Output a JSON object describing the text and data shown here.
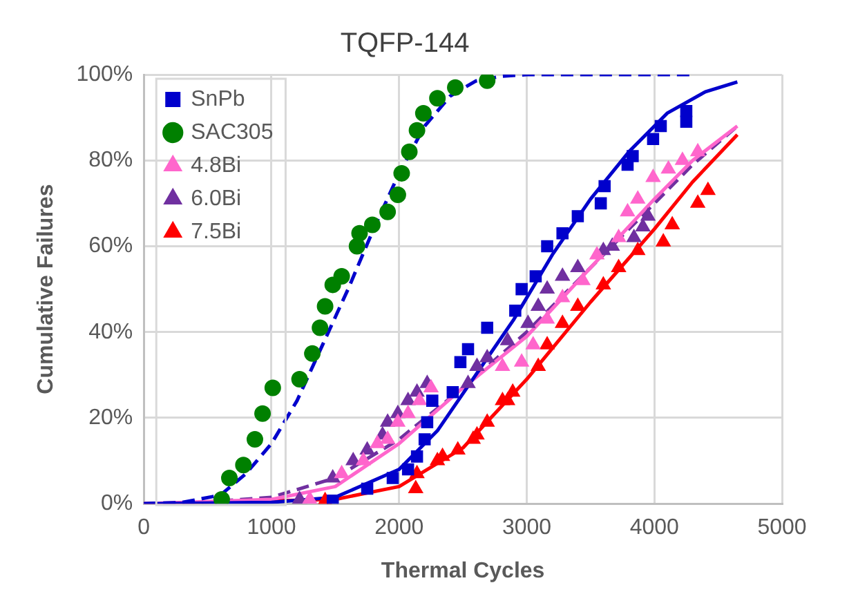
{
  "chart_data": {
    "type": "scatter",
    "title": "TQFP-144",
    "xlabel": "Thermal Cycles",
    "ylabel": "Cumulative Failures",
    "xlim": [
      0,
      5000
    ],
    "xticks": [
      0,
      1000,
      2000,
      3000,
      4000,
      5000
    ],
    "ylim": [
      0,
      100
    ],
    "yticks": [
      {
        "value": 0,
        "label": "0%"
      },
      {
        "value": 20,
        "label": "20%"
      },
      {
        "value": 40,
        "label": "40%"
      },
      {
        "value": 60,
        "label": "60%"
      },
      {
        "value": 80,
        "label": "80%"
      },
      {
        "value": 100,
        "label": "100%"
      }
    ],
    "grid": true,
    "legend": "top left",
    "series": [
      {
        "name": "SnPb",
        "type": "scatter",
        "marker": "square",
        "color": "#0000cc",
        "x": [
          1480,
          1750,
          1950,
          2070,
          2140,
          2200,
          2220,
          2260,
          2420,
          2480,
          2540,
          2690,
          2910,
          2960,
          3070,
          3160,
          3280,
          3400,
          3580,
          3610,
          3790,
          3830,
          3990,
          4050,
          4250,
          4250
        ],
        "values": [
          0.7,
          3.5,
          6,
          8,
          11,
          15,
          19,
          24,
          26,
          33,
          36,
          41,
          45,
          50,
          53,
          60,
          63,
          67,
          70,
          74,
          79,
          81,
          85,
          88,
          91.5,
          89
        ]
      },
      {
        "name": "SAC305",
        "type": "scatter",
        "marker": "circle",
        "color": "#008000",
        "x": [
          610,
          670,
          780,
          870,
          930,
          1010,
          1220,
          1320,
          1380,
          1420,
          1480,
          1550,
          1670,
          1690,
          1790,
          1910,
          1990,
          2020,
          2080,
          2140,
          2190,
          2300,
          2440,
          2690
        ],
        "values": [
          1,
          6,
          9,
          15,
          21,
          27,
          29,
          35,
          41,
          46,
          51,
          53,
          60,
          63,
          65,
          68,
          72,
          77,
          82,
          87,
          91,
          94.5,
          97,
          98.6
        ]
      },
      {
        "name": "4.8Bi",
        "type": "scatter",
        "marker": "triangle",
        "color": "#ff66cc",
        "x": [
          1300,
          1550,
          1720,
          1830,
          1910,
          1990,
          2070,
          2160,
          2250,
          2810,
          2960,
          3050,
          3160,
          3280,
          3440,
          3550,
          3720,
          3790,
          3870,
          3990,
          4110,
          4220,
          4340
        ],
        "values": [
          1,
          7,
          10,
          14,
          15,
          19,
          21,
          24,
          27,
          32,
          33,
          37,
          43,
          48,
          52,
          58,
          62,
          68,
          71,
          76,
          78,
          80,
          82
        ]
      },
      {
        "name": "6.0Bi",
        "type": "scatter",
        "marker": "triangle",
        "color": "#7030a0",
        "x": [
          1220,
          1480,
          1640,
          1750,
          1870,
          1910,
          1990,
          2070,
          2140,
          2220,
          2540,
          2610,
          2690,
          2850,
          3010,
          3090,
          3160,
          3280,
          3400,
          3600,
          3670,
          3840,
          3910,
          3950
        ],
        "values": [
          1,
          6,
          10,
          12.5,
          16,
          19,
          21,
          24,
          26,
          28,
          28,
          32,
          34,
          38,
          42,
          46,
          50,
          53,
          55,
          59,
          60,
          62,
          64.5,
          67
        ]
      },
      {
        "name": "7.5Bi",
        "type": "scatter",
        "marker": "triangle",
        "color": "#ff0000",
        "x": [
          1420,
          2130,
          2140,
          2300,
          2340,
          2460,
          2580,
          2610,
          2690,
          2810,
          2850,
          2890,
          3090,
          3160,
          3280,
          3400,
          3600,
          3720,
          3870,
          4070,
          4140,
          4340,
          4420
        ],
        "values": [
          0.7,
          3.5,
          7,
          10,
          11,
          12.5,
          15,
          16,
          19,
          24,
          24,
          26,
          32,
          37,
          42,
          46,
          51,
          55,
          59,
          61,
          65,
          70,
          73
        ]
      },
      {
        "type": "line",
        "marker": "none",
        "line_style": "dashed",
        "color": "#0000cc",
        "x": [
          0,
          300,
          600,
          800,
          1000,
          1200,
          1400,
          1600,
          1800,
          2000,
          2200,
          2400,
          2600,
          2800,
          3000,
          4300
        ],
        "values": [
          0,
          0.3,
          2,
          7,
          14,
          24,
          37,
          50,
          64,
          77,
          88,
          95,
          98.5,
          99.6,
          100,
          100
        ]
      },
      {
        "type": "line",
        "marker": "none",
        "line_style": "solid",
        "color": "#0000cc",
        "x": [
          0,
          1000,
          1500,
          2000,
          2300,
          2600,
          2900,
          3200,
          3500,
          3800,
          4100,
          4400,
          4650
        ],
        "values": [
          0,
          0.3,
          1.5,
          8,
          17,
          30,
          43,
          58,
          71,
          82,
          91,
          96,
          98.3
        ]
      },
      {
        "type": "line",
        "marker": "none",
        "line_style": "solid",
        "color": "#ff66cc",
        "x": [
          0,
          1000,
          1500,
          2000,
          2500,
          3000,
          3500,
          4000,
          4300,
          4650
        ],
        "values": [
          0,
          1,
          4,
          14,
          27,
          39,
          55,
          71,
          80,
          88
        ]
      },
      {
        "type": "line",
        "marker": "none",
        "line_style": "dashed",
        "color": "#7030a0",
        "x": [
          300,
          1000,
          1500,
          2000,
          2500,
          3000,
          3500,
          4000,
          4300,
          4650
        ],
        "values": [
          0,
          1.5,
          6,
          15,
          27,
          40,
          55,
          70,
          79,
          88
        ]
      },
      {
        "type": "line",
        "marker": "none",
        "line_style": "solid",
        "color": "#ff0000",
        "x": [
          0,
          1500,
          2000,
          2500,
          3000,
          3500,
          4000,
          4300,
          4650
        ],
        "values": [
          0,
          1,
          4,
          13,
          29,
          47,
          64,
          75,
          86
        ]
      }
    ]
  }
}
